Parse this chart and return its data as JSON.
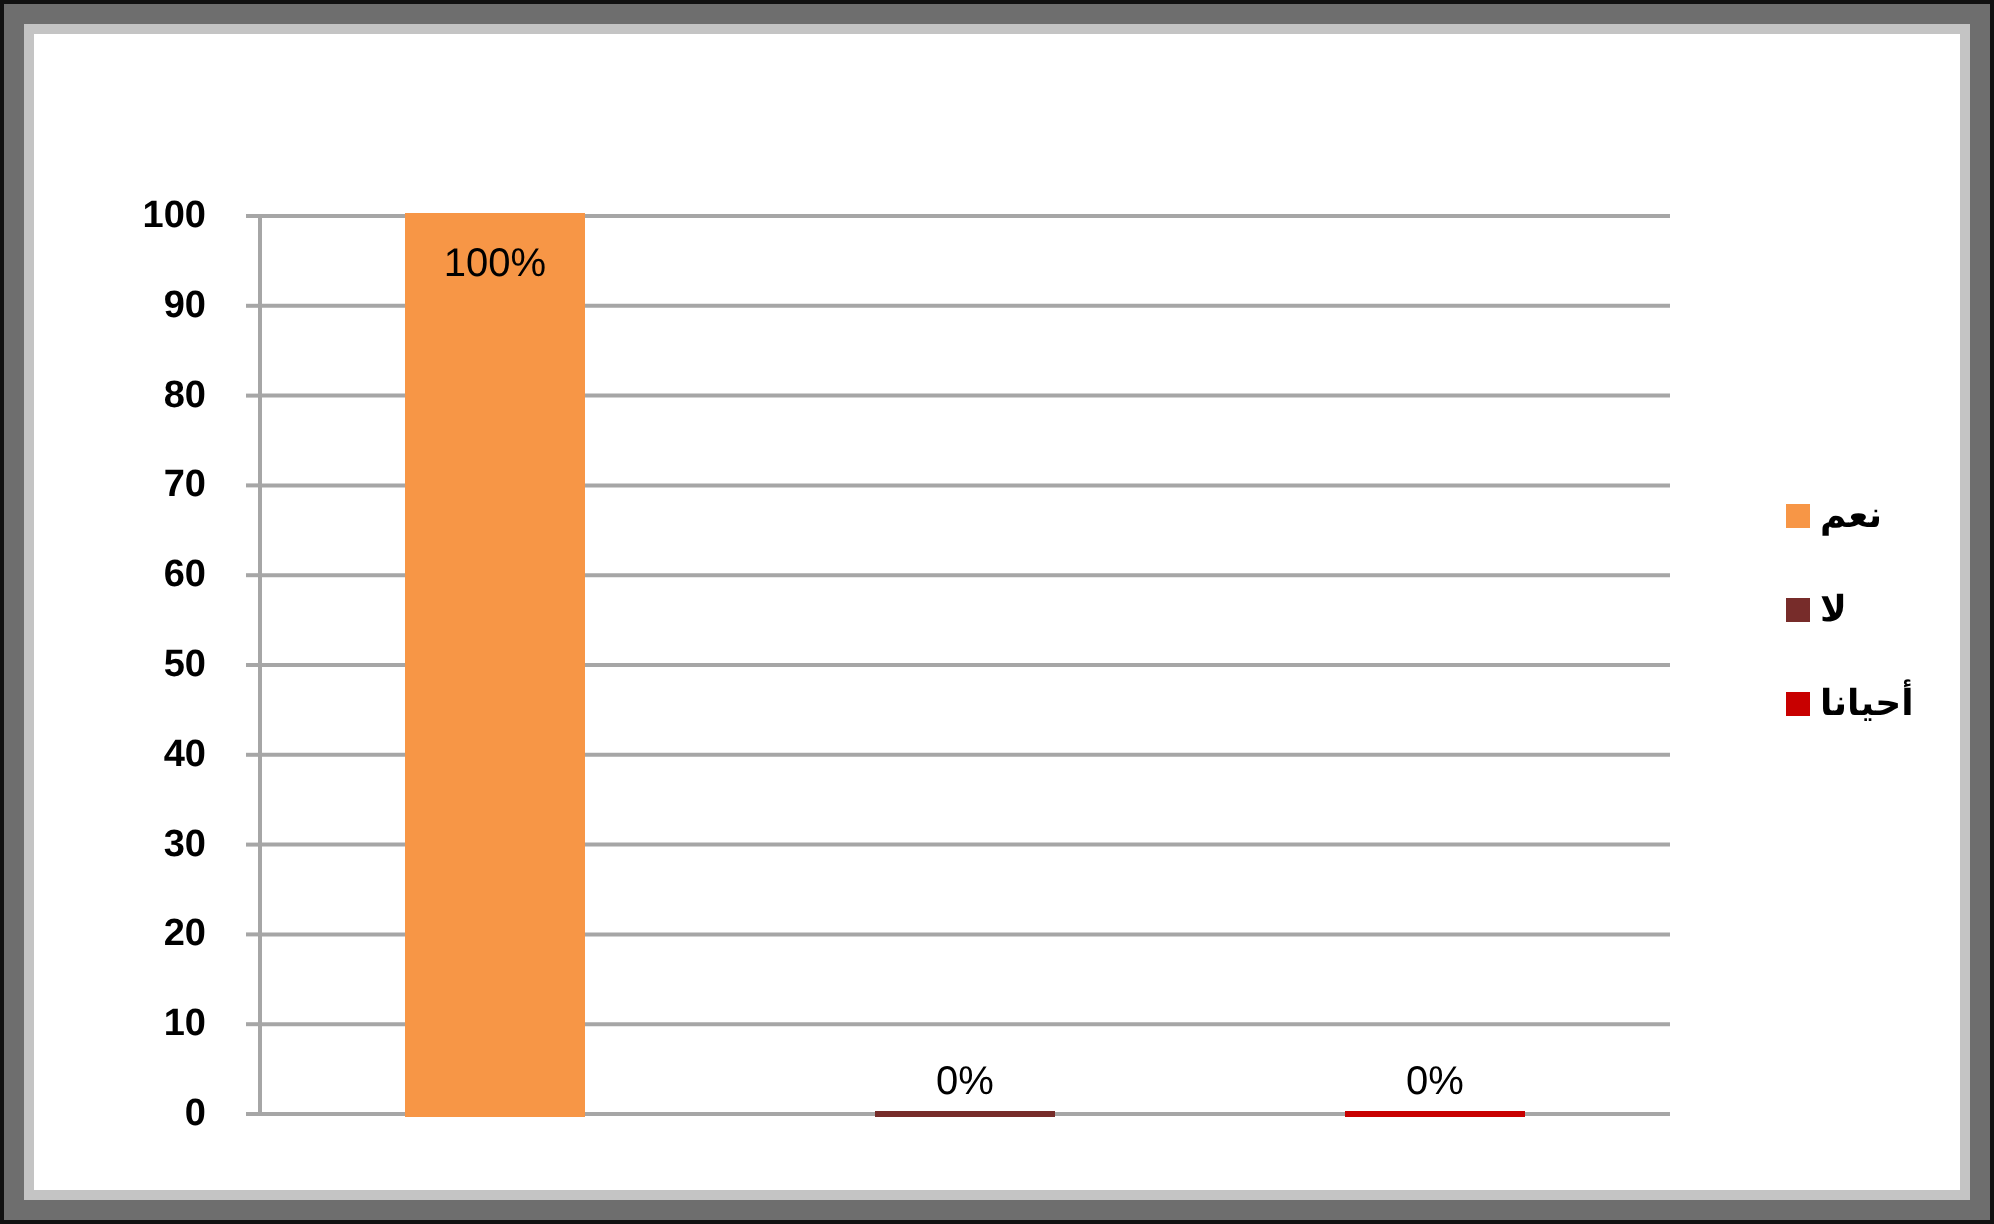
{
  "chart_data": {
    "type": "bar",
    "categories": [
      null
    ],
    "series": [
      {
        "name": "نعم",
        "color": "#f79646",
        "values": [
          100
        ],
        "value_labels": [
          "100%"
        ]
      },
      {
        "name": "لا",
        "color": "#772c2a",
        "values": [
          0
        ],
        "value_labels": [
          "0%"
        ]
      },
      {
        "name": "أحيانا",
        "color": "#c80000",
        "values": [
          0
        ],
        "value_labels": [
          "0%"
        ]
      }
    ],
    "ylim": [
      0,
      100
    ],
    "yticks": [
      0,
      10,
      20,
      30,
      40,
      50,
      60,
      70,
      80,
      90,
      100
    ],
    "grid": "y",
    "legend": "right"
  }
}
